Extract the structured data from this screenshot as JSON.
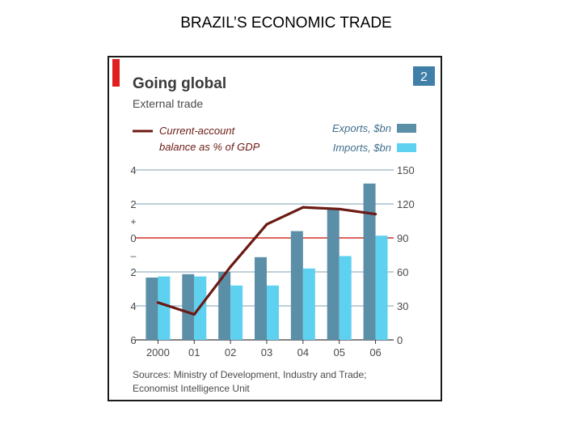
{
  "slide": {
    "title": "BRAZIL’S ECONOMIC TRADE"
  },
  "chart_data": {
    "type": "bar",
    "title": "Going global",
    "subtitle": "External trade",
    "chart_number": "2",
    "categories": [
      "2000",
      "01",
      "02",
      "03",
      "04",
      "05",
      "06"
    ],
    "series": [
      {
        "name": "Exports, $bn",
        "type": "bar",
        "axis": "right",
        "color": "#5b8fa8",
        "values": [
          55,
          58,
          60,
          73,
          96,
          116,
          138
        ]
      },
      {
        "name": "Imports, $bn",
        "type": "bar",
        "axis": "right",
        "color": "#5fd1f0",
        "values": [
          56,
          56,
          48,
          48,
          63,
          74,
          92
        ]
      },
      {
        "name": "Current-account balance as % of GDP",
        "type": "line",
        "axis": "left",
        "color": "#6b1a14",
        "values": [
          -3.8,
          -4.5,
          -1.7,
          0.8,
          1.8,
          1.7,
          1.4
        ]
      }
    ],
    "left_axis": {
      "ylim": [
        -6,
        4
      ],
      "ticks": [
        4,
        2,
        0,
        -2,
        -4,
        -6
      ],
      "tick_labels": [
        "4",
        "2",
        "0",
        "2",
        "4",
        "6"
      ],
      "sign_labels": [
        "+",
        "–"
      ]
    },
    "right_axis": {
      "ylim": [
        0,
        150
      ],
      "ticks": [
        150,
        120,
        90,
        60,
        30,
        0
      ],
      "tick_labels": [
        "150",
        "120",
        "90",
        "60",
        "30",
        "0"
      ]
    },
    "legend_left": [
      "Current-account",
      "balance as % of GDP"
    ],
    "legend_right": [
      "Exports, $bn",
      "Imports, $bn"
    ],
    "source": [
      "Sources: Ministry of Development, Industry and Trade;",
      "Economist Intelligence Unit"
    ],
    "colors": {
      "accent_red": "#e02020",
      "number_box": "#3f7fa8",
      "zero_line": "#d03028",
      "grid": "#7f9fb0",
      "text": "#4a4a4a"
    }
  }
}
